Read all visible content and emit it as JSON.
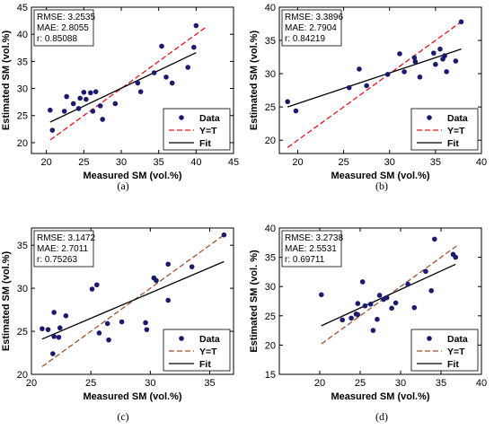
{
  "colors": {
    "data": "#1a1a6e",
    "yt_a": "#e8141b",
    "yt_b": "#e8141b",
    "yt_c": "#a0522d",
    "yt_d": "#a0522d",
    "fit": "#000000"
  },
  "chart_data": [
    {
      "type": "scatter",
      "panel": "a",
      "caption": "(a)",
      "xlabel": "Measured SM (vol.%)",
      "ylabel": "Estimated SM (vol.%)",
      "xlim": [
        18,
        45
      ],
      "ylim": [
        18,
        45
      ],
      "xticks": [
        "20",
        "25",
        "30",
        "35",
        "40",
        "45"
      ],
      "yticks": [
        "20",
        "25",
        "30",
        "35",
        "40",
        "45"
      ],
      "stats": [
        "RMSE: 3.2535",
        "MAE: 2.8055",
        "r: 0.85088"
      ],
      "legend": [
        "Data",
        "Y=T",
        "Fit"
      ],
      "series": [
        {
          "name": "Data",
          "points": [
            [
              20.5,
              26.0
            ],
            [
              20.8,
              22.3
            ],
            [
              22.4,
              25.8
            ],
            [
              22.7,
              28.5
            ],
            [
              23.6,
              27.2
            ],
            [
              24.3,
              26.3
            ],
            [
              24.5,
              28.2
            ],
            [
              25.0,
              29.3
            ],
            [
              25.3,
              28.0
            ],
            [
              25.9,
              29.2
            ],
            [
              26.2,
              25.8
            ],
            [
              26.6,
              29.4
            ],
            [
              27.2,
              26.8
            ],
            [
              27.5,
              24.3
            ],
            [
              29.2,
              27.2
            ],
            [
              32.2,
              31.0
            ],
            [
              32.6,
              29.4
            ],
            [
              34.4,
              32.9
            ],
            [
              35.4,
              37.8
            ],
            [
              36.0,
              32.1
            ],
            [
              36.8,
              31.0
            ],
            [
              38.9,
              33.9
            ],
            [
              39.7,
              37.6
            ],
            [
              40.0,
              41.6
            ]
          ]
        }
      ],
      "fit_line": [
        [
          20.5,
          23.8
        ],
        [
          40.0,
          36.6
        ]
      ],
      "yt_line": [
        [
          20.5,
          20.5
        ],
        [
          41.5,
          41.5
        ]
      ]
    },
    {
      "type": "scatter",
      "panel": "b",
      "caption": "(b)",
      "xlabel": "Measured SM (vol.%)",
      "ylabel": "Estimated SM (vol.%)",
      "xlim": [
        18,
        40
      ],
      "ylim": [
        18,
        40
      ],
      "xticks": [
        "20",
        "25",
        "30",
        "35",
        "40"
      ],
      "yticks": [
        "20",
        "25",
        "30",
        "35",
        "40"
      ],
      "stats": [
        "RMSE: 3.3896",
        "MAE: 2.7904",
        "r: 0.84219"
      ],
      "legend": [
        "Data",
        "Y=T",
        "Fit"
      ],
      "series": [
        {
          "name": "Data",
          "points": [
            [
              18.9,
              25.8
            ],
            [
              19.8,
              24.4
            ],
            [
              25.6,
              27.9
            ],
            [
              26.7,
              30.7
            ],
            [
              27.5,
              28.2
            ],
            [
              29.8,
              29.9
            ],
            [
              31.1,
              33.0
            ],
            [
              31.6,
              30.3
            ],
            [
              32.7,
              32.4
            ],
            [
              32.8,
              31.8
            ],
            [
              33.3,
              29.5
            ],
            [
              34.8,
              33.1
            ],
            [
              35.0,
              31.4
            ],
            [
              35.5,
              33.7
            ],
            [
              35.8,
              32.2
            ],
            [
              36.0,
              32.7
            ],
            [
              36.2,
              30.3
            ],
            [
              37.2,
              31.9
            ],
            [
              37.8,
              37.8
            ]
          ]
        }
      ],
      "fit_line": [
        [
          18.9,
          25.0
        ],
        [
          37.8,
          33.7
        ]
      ],
      "yt_line": [
        [
          18.9,
          18.9
        ],
        [
          37.8,
          37.8
        ]
      ]
    },
    {
      "type": "scatter",
      "panel": "c",
      "caption": "(c)",
      "xlabel": "Measured SM (vol.%)",
      "ylabel": "Estimated SM (vol.%)",
      "xlim": [
        20,
        37
      ],
      "ylim": [
        20,
        37
      ],
      "xticks": [
        "20",
        "25",
        "30",
        "35"
      ],
      "yticks": [
        "20",
        "25",
        "30",
        "35"
      ],
      "stats": [
        "RMSE: 3.1472",
        "MAE: 2.7011",
        "r: 0.75263"
      ],
      "legend": [
        "Data",
        "Y=T",
        "Fit"
      ],
      "series": [
        {
          "name": "Data",
          "points": [
            [
              20.9,
              25.3
            ],
            [
              21.4,
              25.2
            ],
            [
              21.9,
              27.2
            ],
            [
              21.8,
              22.4
            ],
            [
              21.9,
              24.4
            ],
            [
              22.3,
              24.3
            ],
            [
              22.4,
              25.4
            ],
            [
              22.9,
              26.8
            ],
            [
              25.1,
              29.9
            ],
            [
              25.5,
              30.4
            ],
            [
              25.7,
              24.8
            ],
            [
              26.4,
              25.9
            ],
            [
              26.5,
              24.0
            ],
            [
              27.6,
              26.1
            ],
            [
              29.6,
              26.0
            ],
            [
              29.7,
              25.2
            ],
            [
              30.3,
              31.2
            ],
            [
              30.5,
              30.9
            ],
            [
              31.5,
              32.8
            ],
            [
              31.5,
              28.6
            ],
            [
              33.5,
              32.5
            ],
            [
              36.2,
              36.2
            ]
          ]
        }
      ],
      "fit_line": [
        [
          20.9,
          24.1
        ],
        [
          36.2,
          33.1
        ]
      ],
      "yt_line": [
        [
          20.9,
          20.9
        ],
        [
          36.2,
          36.2
        ]
      ]
    },
    {
      "type": "scatter",
      "panel": "d",
      "caption": "(d)",
      "xlabel": "Measured SM (vol.%)",
      "ylabel": "Estimated SM (vol. %)",
      "xlim": [
        15,
        40
      ],
      "ylim": [
        15,
        40
      ],
      "xticks": [
        "20",
        "25",
        "30",
        "35",
        "40"
      ],
      "yticks": [
        "15",
        "20",
        "25",
        "30",
        "35",
        "40"
      ],
      "stats": [
        "RMSE: 3.2738",
        "MAE: 2.5531",
        "r: 0.69711"
      ],
      "legend": [
        "Data",
        "Y=T",
        "Fit"
      ],
      "series": [
        {
          "name": "Data",
          "points": [
            [
              20.2,
              28.6
            ],
            [
              22.8,
              24.3
            ],
            [
              23.9,
              24.6
            ],
            [
              24.5,
              25.3
            ],
            [
              24.7,
              25.2
            ],
            [
              24.7,
              27.1
            ],
            [
              25.3,
              30.8
            ],
            [
              25.6,
              26.7
            ],
            [
              26.3,
              27.0
            ],
            [
              26.6,
              22.5
            ],
            [
              27.1,
              24.4
            ],
            [
              27.4,
              28.5
            ],
            [
              27.9,
              27.8
            ],
            [
              28.3,
              28.1
            ],
            [
              28.9,
              26.3
            ],
            [
              29.4,
              27.2
            ],
            [
              30.9,
              30.4
            ],
            [
              31.7,
              26.4
            ],
            [
              33.1,
              32.6
            ],
            [
              33.8,
              29.3
            ],
            [
              34.2,
              38.1
            ],
            [
              36.5,
              35.5
            ],
            [
              36.8,
              35.0
            ]
          ]
        }
      ],
      "fit_line": [
        [
          20.2,
          23.3
        ],
        [
          36.8,
          33.8
        ]
      ],
      "yt_line": [
        [
          20.2,
          20.2
        ],
        [
          37.0,
          37.0
        ]
      ]
    }
  ]
}
